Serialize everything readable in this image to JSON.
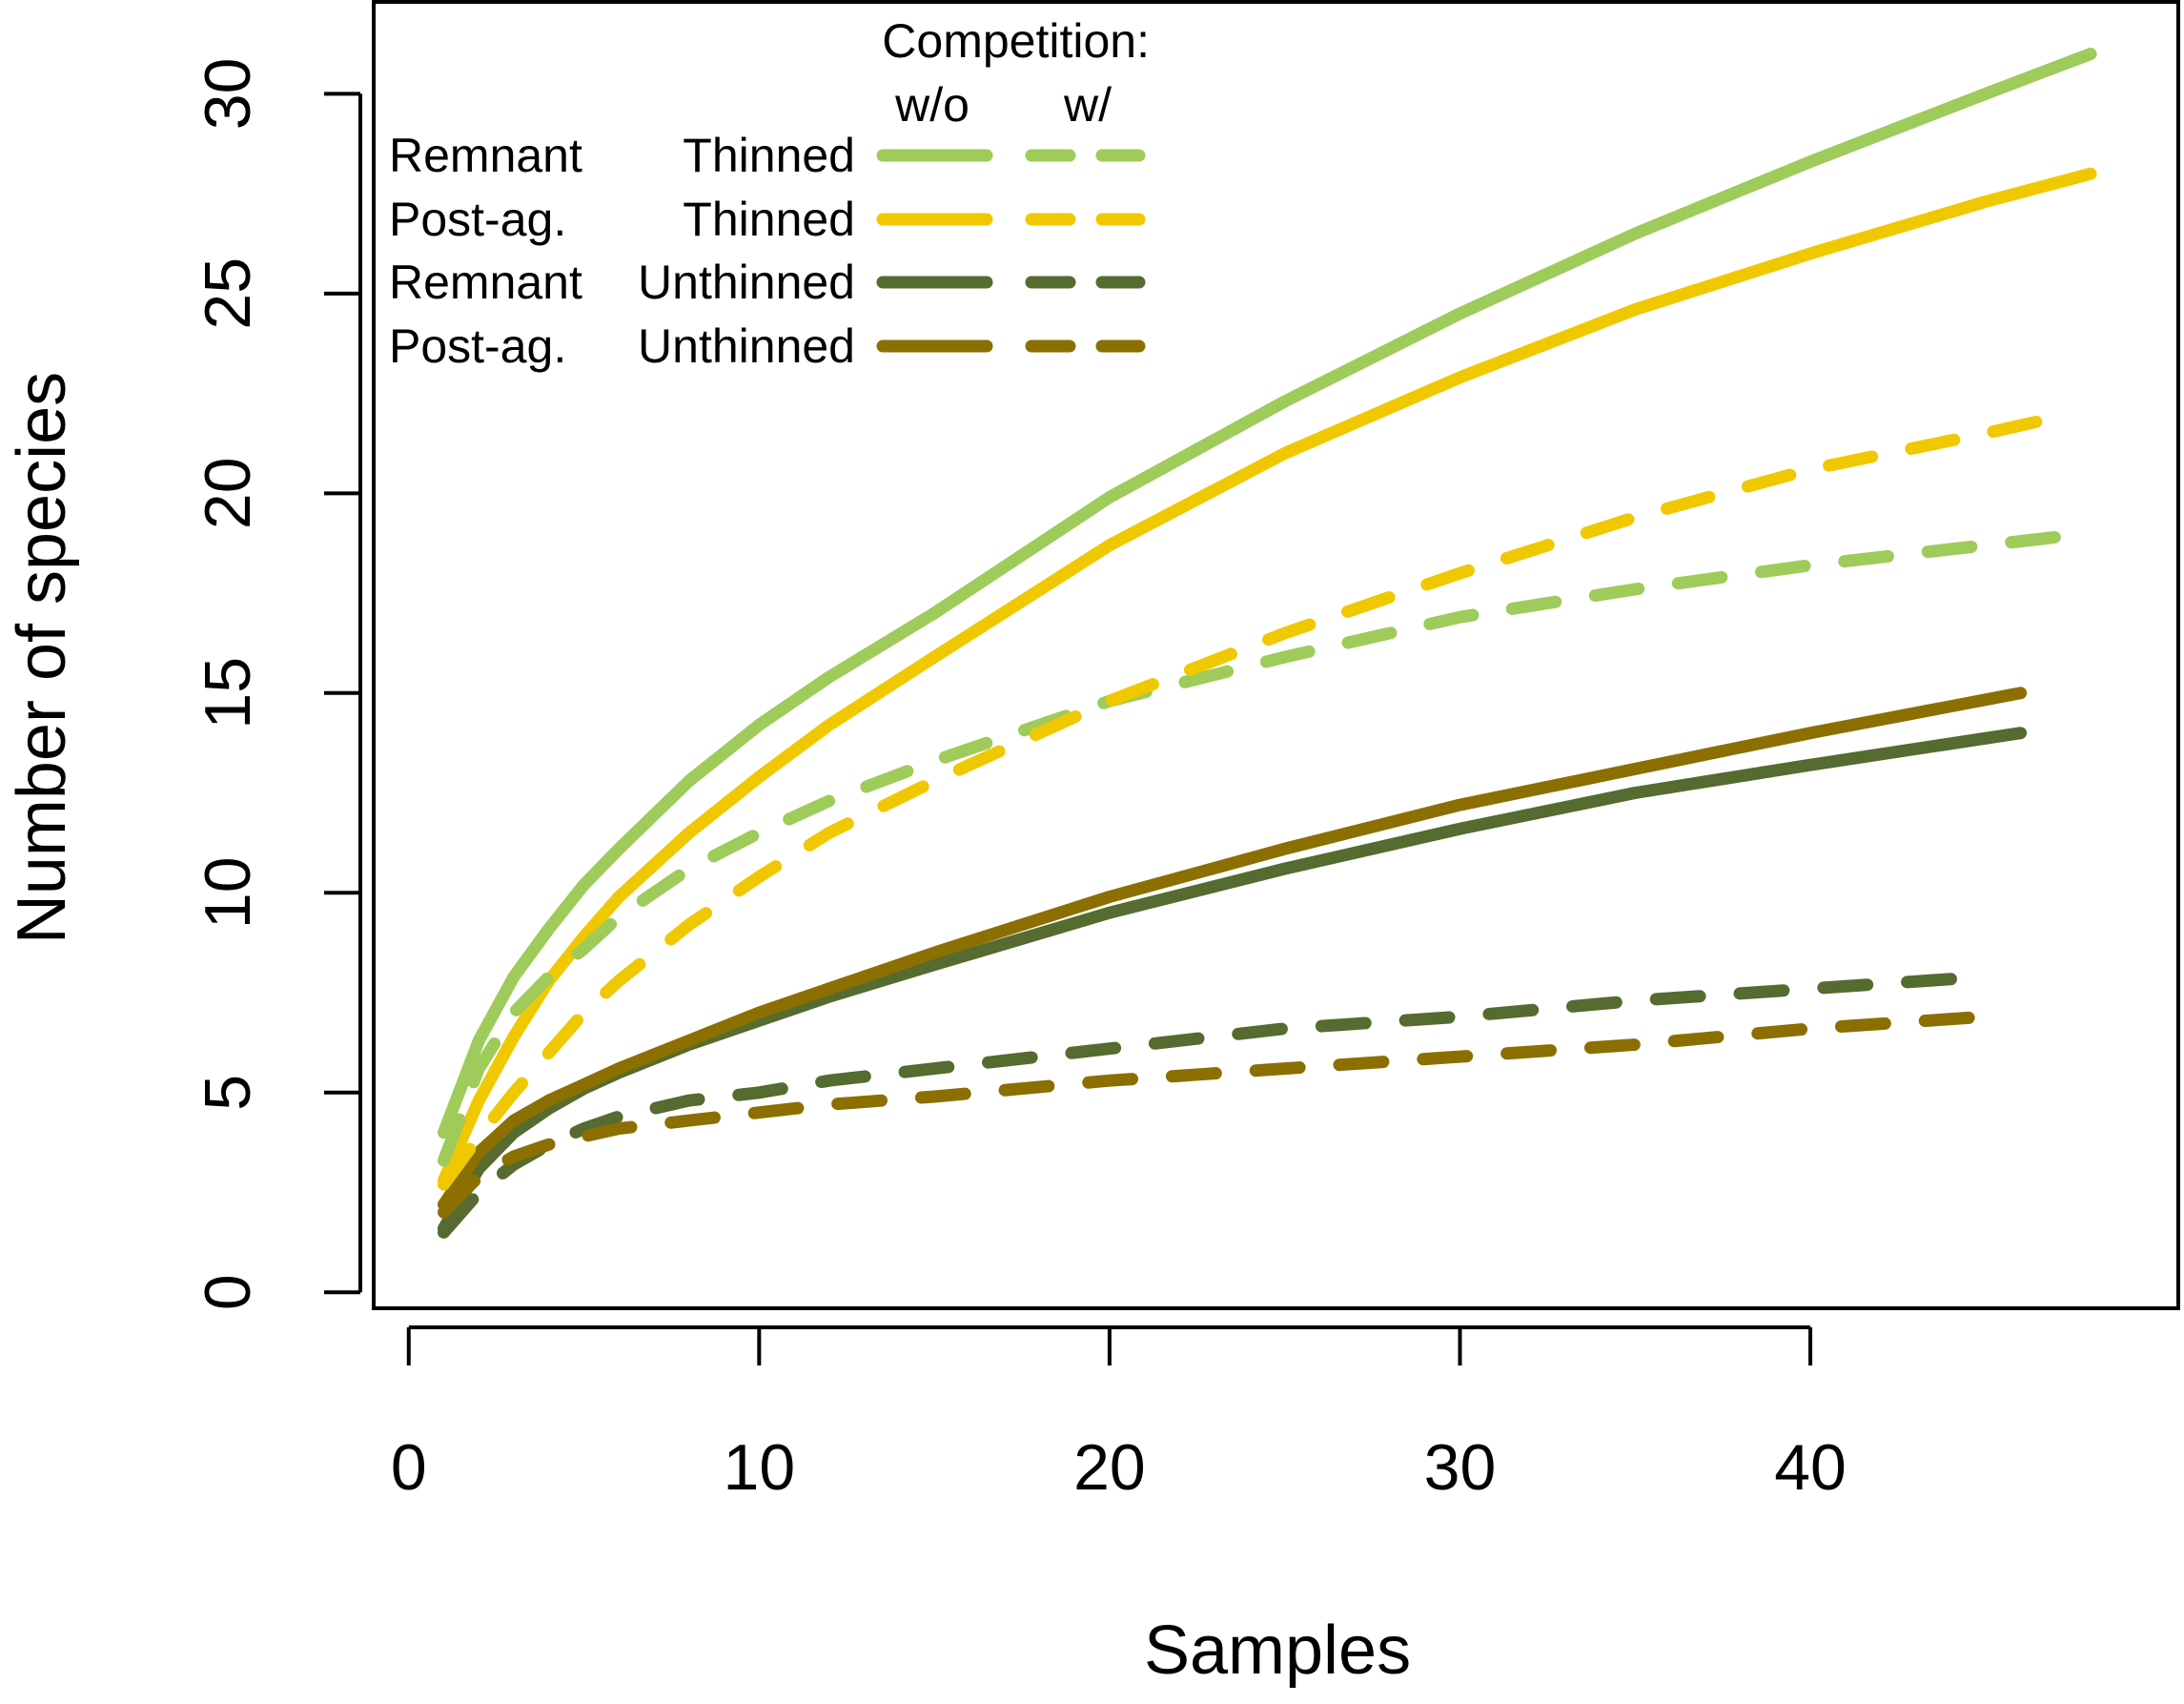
{
  "chart_data": {
    "type": "line",
    "title": "",
    "xlabel": "Samples",
    "ylabel": "Number of species",
    "xlim": [
      -1,
      50.5
    ],
    "ylim": [
      -0.4,
      32.3
    ],
    "x_ticks": [
      0,
      10,
      20,
      30,
      40
    ],
    "y_ticks": [
      0,
      5,
      10,
      15,
      20,
      25,
      30
    ],
    "grid": false,
    "legend": {
      "placement": "top-left",
      "heading": "Competition:",
      "col_without": "w/o",
      "col_with": "w/",
      "rows": [
        {
          "site": "Remnant",
          "treatment": "Thinned",
          "color": "#9ecb5a"
        },
        {
          "site": "Post-ag.",
          "treatment": "Thinned",
          "color": "#f0c800"
        },
        {
          "site": "Remnant",
          "treatment": "Unthinned",
          "color": "#556b2f"
        },
        {
          "site": "Post-ag.",
          "treatment": "Unthinned",
          "color": "#8b6f00"
        }
      ]
    },
    "series": [
      {
        "group": "Remnant Thinned",
        "competition": "w/o",
        "color": "#9ecb5a",
        "style": "solid",
        "x": [
          1,
          2,
          3,
          4,
          5,
          6,
          8,
          10,
          12,
          15,
          20,
          25,
          30,
          35,
          40,
          45,
          48
        ],
        "y": [
          4.0,
          6.3,
          7.9,
          9.1,
          10.2,
          11.1,
          12.8,
          14.2,
          15.4,
          17.0,
          19.9,
          22.3,
          24.5,
          26.5,
          28.3,
          30.0,
          31.0
        ]
      },
      {
        "group": "Post-ag. Thinned",
        "competition": "w/o",
        "color": "#f0c800",
        "style": "solid",
        "x": [
          1,
          2,
          3,
          4,
          5,
          6,
          8,
          10,
          12,
          15,
          20,
          25,
          30,
          35,
          40,
          45,
          48
        ],
        "y": [
          2.8,
          4.8,
          6.4,
          7.8,
          8.9,
          9.9,
          11.5,
          12.9,
          14.2,
          15.9,
          18.7,
          21.0,
          22.9,
          24.6,
          26.0,
          27.3,
          28.0
        ]
      },
      {
        "group": "Remnant Unthinned",
        "competition": "w/o",
        "color": "#556b2f",
        "style": "solid",
        "x": [
          1,
          2,
          3,
          4,
          5,
          6,
          8,
          10,
          12,
          15,
          20,
          25,
          30,
          35,
          40,
          46
        ],
        "y": [
          1.6,
          3.1,
          4.0,
          4.6,
          5.1,
          5.5,
          6.2,
          6.8,
          7.4,
          8.2,
          9.5,
          10.6,
          11.6,
          12.5,
          13.2,
          14.0
        ]
      },
      {
        "group": "Post-ag. Unthinned",
        "competition": "w/o",
        "color": "#8b6f00",
        "style": "solid",
        "x": [
          1,
          2,
          3,
          4,
          5,
          6,
          8,
          10,
          12,
          15,
          20,
          25,
          30,
          35,
          40,
          46
        ],
        "y": [
          2.2,
          3.5,
          4.3,
          4.8,
          5.2,
          5.6,
          6.3,
          7.0,
          7.6,
          8.5,
          9.9,
          11.1,
          12.2,
          13.1,
          14.0,
          15.0
        ]
      },
      {
        "group": "Remnant Thinned",
        "competition": "w/",
        "color": "#9ecb5a",
        "style": "dashed",
        "x": [
          1,
          2,
          3,
          4,
          5,
          6,
          8,
          10,
          12,
          15,
          18,
          20,
          25,
          30,
          35,
          40,
          45,
          47
        ],
        "y": [
          3.3,
          5.6,
          7.0,
          7.9,
          8.6,
          9.4,
          10.6,
          11.5,
          12.3,
          13.3,
          14.2,
          14.8,
          15.9,
          16.9,
          17.6,
          18.2,
          18.7,
          18.9
        ]
      },
      {
        "group": "Post-ag. Thinned",
        "competition": "w/",
        "color": "#f0c800",
        "style": "dashed",
        "x": [
          1,
          2,
          3,
          4,
          5,
          6,
          8,
          10,
          12,
          15,
          18,
          20,
          25,
          30,
          35,
          40,
          45,
          46.5
        ],
        "y": [
          2.7,
          3.9,
          5.0,
          6.0,
          7.0,
          7.8,
          9.2,
          10.4,
          11.5,
          12.8,
          14.0,
          14.8,
          16.5,
          18.0,
          19.4,
          20.6,
          21.5,
          21.8
        ]
      },
      {
        "group": "Remnant Unthinned",
        "competition": "w/",
        "color": "#556b2f",
        "style": "dashed",
        "x": [
          1,
          2,
          3,
          4,
          5,
          6,
          8,
          10,
          12,
          15,
          20,
          25,
          30,
          35,
          40,
          45
        ],
        "y": [
          1.5,
          2.5,
          3.2,
          3.7,
          4.1,
          4.4,
          4.8,
          5.0,
          5.3,
          5.6,
          6.1,
          6.6,
          6.9,
          7.3,
          7.6,
          7.9
        ]
      },
      {
        "group": "Post-ag. Unthinned",
        "competition": "w/",
        "color": "#8b6f00",
        "style": "dashed",
        "x": [
          1,
          2,
          3,
          4,
          5,
          6,
          8,
          10,
          12,
          15,
          20,
          25,
          30,
          35,
          40,
          45
        ],
        "y": [
          2.0,
          2.9,
          3.4,
          3.7,
          3.9,
          4.1,
          4.3,
          4.5,
          4.7,
          4.9,
          5.3,
          5.6,
          5.9,
          6.2,
          6.6,
          6.9
        ]
      }
    ]
  }
}
